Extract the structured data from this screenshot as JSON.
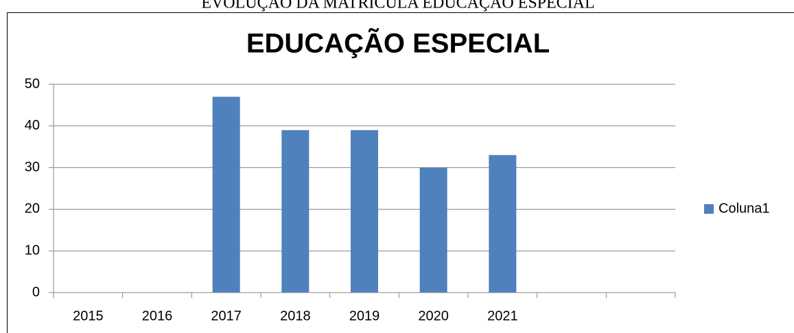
{
  "heading": "EVOLUÇÃO DA MATRÍCULA EDUCAÇÃO ESPECIAL",
  "chart_data": {
    "type": "bar",
    "title": "EDUCAÇÃO ESPECIAL",
    "categories": [
      "2015",
      "2016",
      "2017",
      "2018",
      "2019",
      "2020",
      "2021",
      null,
      null
    ],
    "series": [
      {
        "name": "Coluna1",
        "color": "#4f81bd",
        "values": [
          null,
          null,
          47,
          39,
          39,
          30,
          33,
          null,
          null
        ]
      }
    ],
    "ylim": [
      0,
      50
    ],
    "yticks": [
      0,
      10,
      20,
      30,
      40,
      50
    ],
    "grid": true,
    "legend": "right"
  }
}
